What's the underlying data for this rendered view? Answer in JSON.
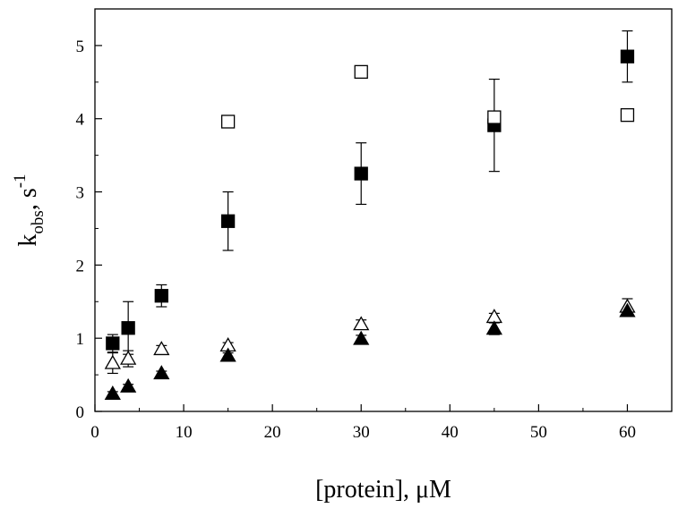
{
  "chart_data": {
    "type": "scatter",
    "xlabel": "[protein], μM",
    "ylabel": "k",
    "ylabel_sub": "obs",
    "ylabel_after": ", s",
    "ylabel_sup": "-1",
    "xlim": [
      0,
      65
    ],
    "ylim": [
      0,
      5.5
    ],
    "xticks": [
      0,
      10,
      20,
      30,
      40,
      50,
      60
    ],
    "yticks": [
      0,
      1,
      2,
      3,
      4,
      5
    ],
    "grid": false,
    "series": [
      {
        "marker": "filled-square",
        "color": "#000000",
        "points": [
          {
            "x": 2,
            "y": 0.93,
            "err": 0.12
          },
          {
            "x": 3.75,
            "y": 1.14,
            "err": 0.36
          },
          {
            "x": 7.5,
            "y": 1.58,
            "err": 0.15
          },
          {
            "x": 15,
            "y": 2.6,
            "err": 0.4
          },
          {
            "x": 30,
            "y": 3.25,
            "err": 0.42
          },
          {
            "x": 45,
            "y": 3.91,
            "err": 0.63
          },
          {
            "x": 60,
            "y": 4.85,
            "err": 0.35
          }
        ]
      },
      {
        "marker": "open-square",
        "color": "#000000",
        "points": [
          {
            "x": 15,
            "y": 3.96
          },
          {
            "x": 30,
            "y": 4.64
          },
          {
            "x": 45,
            "y": 4.02
          },
          {
            "x": 60,
            "y": 4.05
          }
        ]
      },
      {
        "marker": "open-triangle",
        "color": "#000000",
        "points": [
          {
            "x": 2,
            "y": 0.66,
            "err": 0.14
          },
          {
            "x": 3.75,
            "y": 0.72,
            "err": 0.11
          },
          {
            "x": 7.5,
            "y": 0.85,
            "err": 0.05
          },
          {
            "x": 15,
            "y": 0.9,
            "err": 0.04
          },
          {
            "x": 30,
            "y": 1.19,
            "err": 0.06
          },
          {
            "x": 45,
            "y": 1.29,
            "err": 0.05
          },
          {
            "x": 60,
            "y": 1.43,
            "err": 0.11
          }
        ]
      },
      {
        "marker": "filled-triangle",
        "color": "#000000",
        "points": [
          {
            "x": 2,
            "y": 0.24,
            "err": 0.03
          },
          {
            "x": 3.75,
            "y": 0.34,
            "err": 0.03
          },
          {
            "x": 7.5,
            "y": 0.52,
            "err": 0.03
          },
          {
            "x": 15,
            "y": 0.76,
            "err": 0.04
          },
          {
            "x": 30,
            "y": 0.99,
            "err": 0.05
          },
          {
            "x": 45,
            "y": 1.13,
            "err": 0.08
          },
          {
            "x": 60,
            "y": 1.37,
            "err": 0.03
          }
        ]
      }
    ]
  }
}
